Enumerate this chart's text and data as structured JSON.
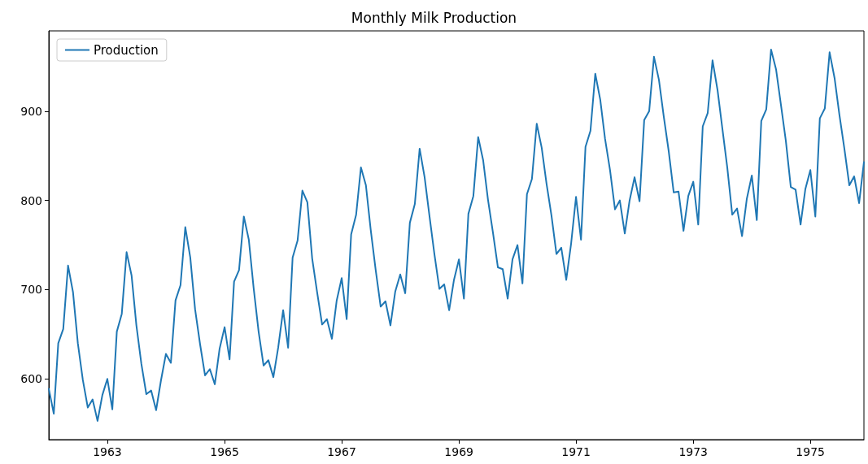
{
  "chart_data": {
    "type": "line",
    "title": "Monthly Milk Production",
    "x": [
      "1962-01",
      "1962-02",
      "1962-03",
      "1962-04",
      "1962-05",
      "1962-06",
      "1962-07",
      "1962-08",
      "1962-09",
      "1962-10",
      "1962-11",
      "1962-12",
      "1963-01",
      "1963-02",
      "1963-03",
      "1963-04",
      "1963-05",
      "1963-06",
      "1963-07",
      "1963-08",
      "1963-09",
      "1963-10",
      "1963-11",
      "1963-12",
      "1964-01",
      "1964-02",
      "1964-03",
      "1964-04",
      "1964-05",
      "1964-06",
      "1964-07",
      "1964-08",
      "1964-09",
      "1964-10",
      "1964-11",
      "1964-12",
      "1965-01",
      "1965-02",
      "1965-03",
      "1965-04",
      "1965-05",
      "1965-06",
      "1965-07",
      "1965-08",
      "1965-09",
      "1965-10",
      "1965-11",
      "1965-12",
      "1966-01",
      "1966-02",
      "1966-03",
      "1966-04",
      "1966-05",
      "1966-06",
      "1966-07",
      "1966-08",
      "1966-09",
      "1966-10",
      "1966-11",
      "1966-12",
      "1967-01",
      "1967-02",
      "1967-03",
      "1967-04",
      "1967-05",
      "1967-06",
      "1967-07",
      "1967-08",
      "1967-09",
      "1967-10",
      "1967-11",
      "1967-12",
      "1968-01",
      "1968-02",
      "1968-03",
      "1968-04",
      "1968-05",
      "1968-06",
      "1968-07",
      "1968-08",
      "1968-09",
      "1968-10",
      "1968-11",
      "1968-12",
      "1969-01",
      "1969-02",
      "1969-03",
      "1969-04",
      "1969-05",
      "1969-06",
      "1969-07",
      "1969-08",
      "1969-09",
      "1969-10",
      "1969-11",
      "1969-12",
      "1970-01",
      "1970-02",
      "1970-03",
      "1970-04",
      "1970-05",
      "1970-06",
      "1970-07",
      "1970-08",
      "1970-09",
      "1970-10",
      "1970-11",
      "1970-12",
      "1971-01",
      "1971-02",
      "1971-03",
      "1971-04",
      "1971-05",
      "1971-06",
      "1971-07",
      "1971-08",
      "1971-09",
      "1971-10",
      "1971-11",
      "1971-12",
      "1972-01",
      "1972-02",
      "1972-03",
      "1972-04",
      "1972-05",
      "1972-06",
      "1972-07",
      "1972-08",
      "1972-09",
      "1972-10",
      "1972-11",
      "1972-12",
      "1973-01",
      "1973-02",
      "1973-03",
      "1973-04",
      "1973-05",
      "1973-06",
      "1973-07",
      "1973-08",
      "1973-09",
      "1973-10",
      "1973-11",
      "1973-12",
      "1974-01",
      "1974-02",
      "1974-03",
      "1974-04",
      "1974-05",
      "1974-06",
      "1974-07",
      "1974-08",
      "1974-09",
      "1974-10",
      "1974-11",
      "1974-12",
      "1975-01",
      "1975-02",
      "1975-03",
      "1975-04",
      "1975-05",
      "1975-06",
      "1975-07",
      "1975-08",
      "1975-09",
      "1975-10",
      "1975-11",
      "1975-12"
    ],
    "series": [
      {
        "name": "Production",
        "color": "#1f77b4",
        "values": [
          589,
          561,
          640,
          656,
          727,
          697,
          640,
          599,
          568,
          577,
          553,
          582,
          600,
          566,
          653,
          673,
          742,
          716,
          660,
          617,
          583,
          587,
          565,
          598,
          628,
          618,
          688,
          705,
          770,
          736,
          678,
          639,
          604,
          611,
          594,
          634,
          658,
          622,
          709,
          722,
          782,
          756,
          702,
          653,
          615,
          621,
          602,
          635,
          677,
          635,
          736,
          755,
          811,
          798,
          735,
          697,
          661,
          667,
          645,
          688,
          713,
          667,
          762,
          784,
          837,
          817,
          767,
          722,
          681,
          687,
          660,
          698,
          717,
          696,
          775,
          796,
          858,
          826,
          783,
          740,
          701,
          706,
          677,
          711,
          734,
          690,
          785,
          805,
          871,
          845,
          801,
          764,
          725,
          723,
          690,
          734,
          750,
          707,
          807,
          824,
          886,
          859,
          819,
          783,
          740,
          747,
          711,
          751,
          804,
          756,
          860,
          878,
          942,
          913,
          869,
          834,
          790,
          800,
          763,
          800,
          826,
          799,
          890,
          900,
          961,
          935,
          894,
          855,
          809,
          810,
          766,
          805,
          821,
          773,
          883,
          898,
          957,
          924,
          881,
          837,
          784,
          791,
          760,
          802,
          828,
          778,
          889,
          902,
          969,
          947,
          908,
          867,
          815,
          812,
          773,
          813,
          834,
          782,
          892,
          903,
          966,
          937,
          896,
          858,
          817,
          827,
          797,
          843
        ]
      }
    ],
    "xlim": [
      "1962-01",
      "1975-12"
    ],
    "xticks": [
      "1963",
      "1965",
      "1967",
      "1969",
      "1971",
      "1973",
      "1975"
    ],
    "ylim": [
      532,
      990
    ],
    "yticks": [
      600,
      700,
      800,
      900
    ],
    "grid": false,
    "legend": "top left",
    "marker": "none",
    "line_style": "solid"
  }
}
